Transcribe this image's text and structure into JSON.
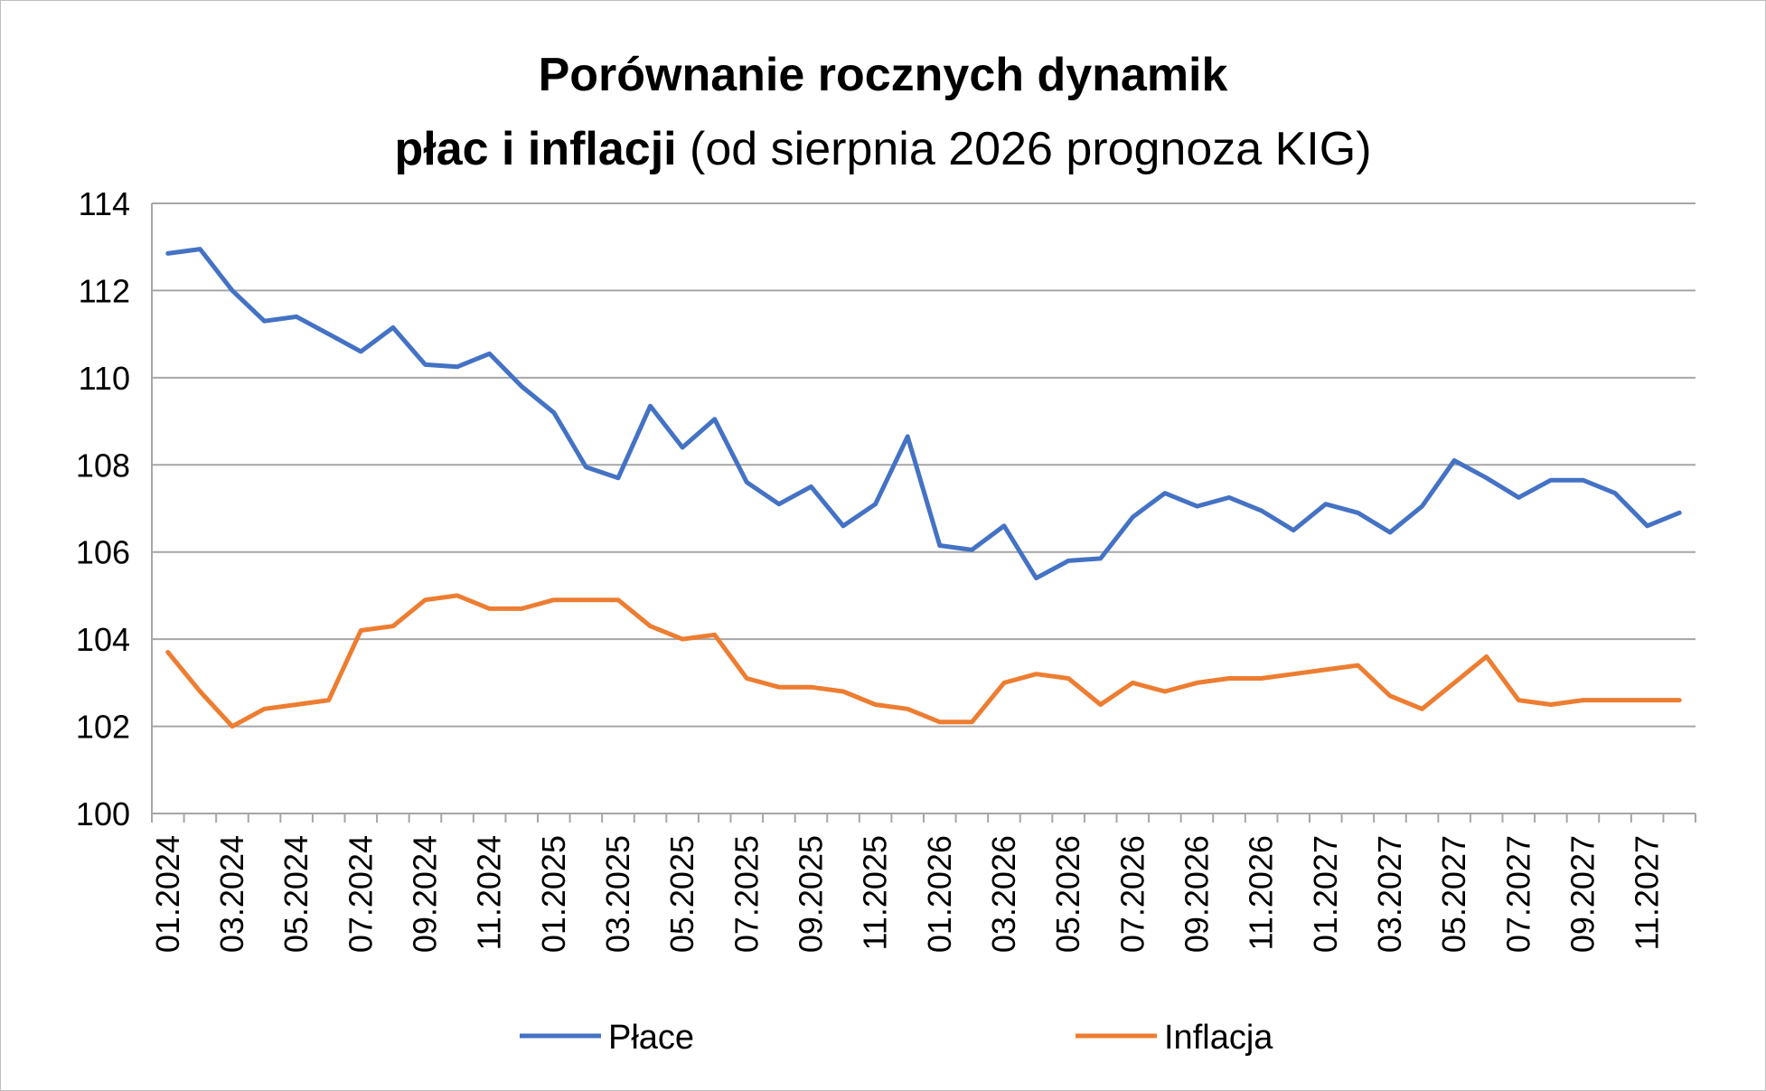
{
  "title_line1": "Porównanie rocznych dynamik",
  "title_line2_bold": "płac i inflacji",
  "title_line2_normal": "(od sierpnia 2026 prognoza KIG)",
  "chart_data": {
    "type": "line",
    "title": "Porównanie rocznych dynamik płac i inflacji (od sierpnia 2026 prognoza KIG)",
    "xlabel": "",
    "ylabel": "",
    "ylim": [
      100,
      114
    ],
    "yticks": [
      100,
      102,
      104,
      106,
      108,
      110,
      112,
      114
    ],
    "grid": true,
    "legend_position": "bottom",
    "x": [
      "01.2024",
      "02.2024",
      "03.2024",
      "04.2024",
      "05.2024",
      "06.2024",
      "07.2024",
      "08.2024",
      "09.2024",
      "10.2024",
      "11.2024",
      "12.2024",
      "01.2025",
      "02.2025",
      "03.2025",
      "04.2025",
      "05.2025",
      "06.2025",
      "07.2025",
      "08.2025",
      "09.2025",
      "10.2025",
      "11.2025",
      "12.2025",
      "01.2026",
      "02.2026",
      "03.2026",
      "04.2026",
      "05.2026",
      "06.2026",
      "07.2026",
      "08.2026",
      "09.2026",
      "10.2026",
      "11.2026",
      "12.2026",
      "01.2027",
      "02.2027",
      "03.2027",
      "04.2027",
      "05.2027",
      "06.2027",
      "07.2027",
      "08.2027",
      "09.2027",
      "10.2027",
      "11.2027",
      "12.2027"
    ],
    "x_tick_labels": [
      "01.2024",
      "03.2024",
      "05.2024",
      "07.2024",
      "09.2024",
      "11.2024",
      "01.2025",
      "03.2025",
      "05.2025",
      "07.2025",
      "09.2025",
      "11.2025",
      "01.2026",
      "03.2026",
      "05.2026",
      "07.2026",
      "09.2026",
      "11.2026",
      "01.2027",
      "03.2027",
      "05.2027",
      "07.2027",
      "09.2027",
      "11.2027"
    ],
    "series": [
      {
        "name": "Płace",
        "color": "#4472c4",
        "values": [
          112.85,
          112.95,
          112.0,
          111.3,
          111.4,
          111.0,
          110.6,
          111.15,
          110.3,
          110.25,
          110.55,
          109.8,
          109.2,
          107.95,
          107.7,
          109.35,
          108.4,
          109.05,
          107.6,
          107.1,
          107.5,
          106.6,
          107.1,
          108.65,
          106.15,
          106.05,
          106.6,
          105.4,
          105.8,
          105.85,
          106.8,
          107.35,
          107.05,
          107.25,
          106.95,
          106.5,
          107.1,
          106.9,
          106.45,
          107.05,
          108.1,
          107.7,
          107.25,
          107.65,
          107.65,
          107.35,
          106.6,
          106.9
        ]
      },
      {
        "name": "Inflacja",
        "color": "#ed7d31",
        "values": [
          103.7,
          102.8,
          102.0,
          102.4,
          102.5,
          102.6,
          104.2,
          104.3,
          104.9,
          105.0,
          104.7,
          104.7,
          104.9,
          104.9,
          104.9,
          104.3,
          104.0,
          104.1,
          103.1,
          102.9,
          102.9,
          102.8,
          102.5,
          102.4,
          102.1,
          102.1,
          103.0,
          103.2,
          103.1,
          102.5,
          103.0,
          102.8,
          103.0,
          103.1,
          103.1,
          103.2,
          103.3,
          103.4,
          102.7,
          102.4,
          103.0,
          103.6,
          102.6,
          102.5,
          102.6,
          102.6,
          102.6,
          102.6
        ]
      }
    ]
  }
}
